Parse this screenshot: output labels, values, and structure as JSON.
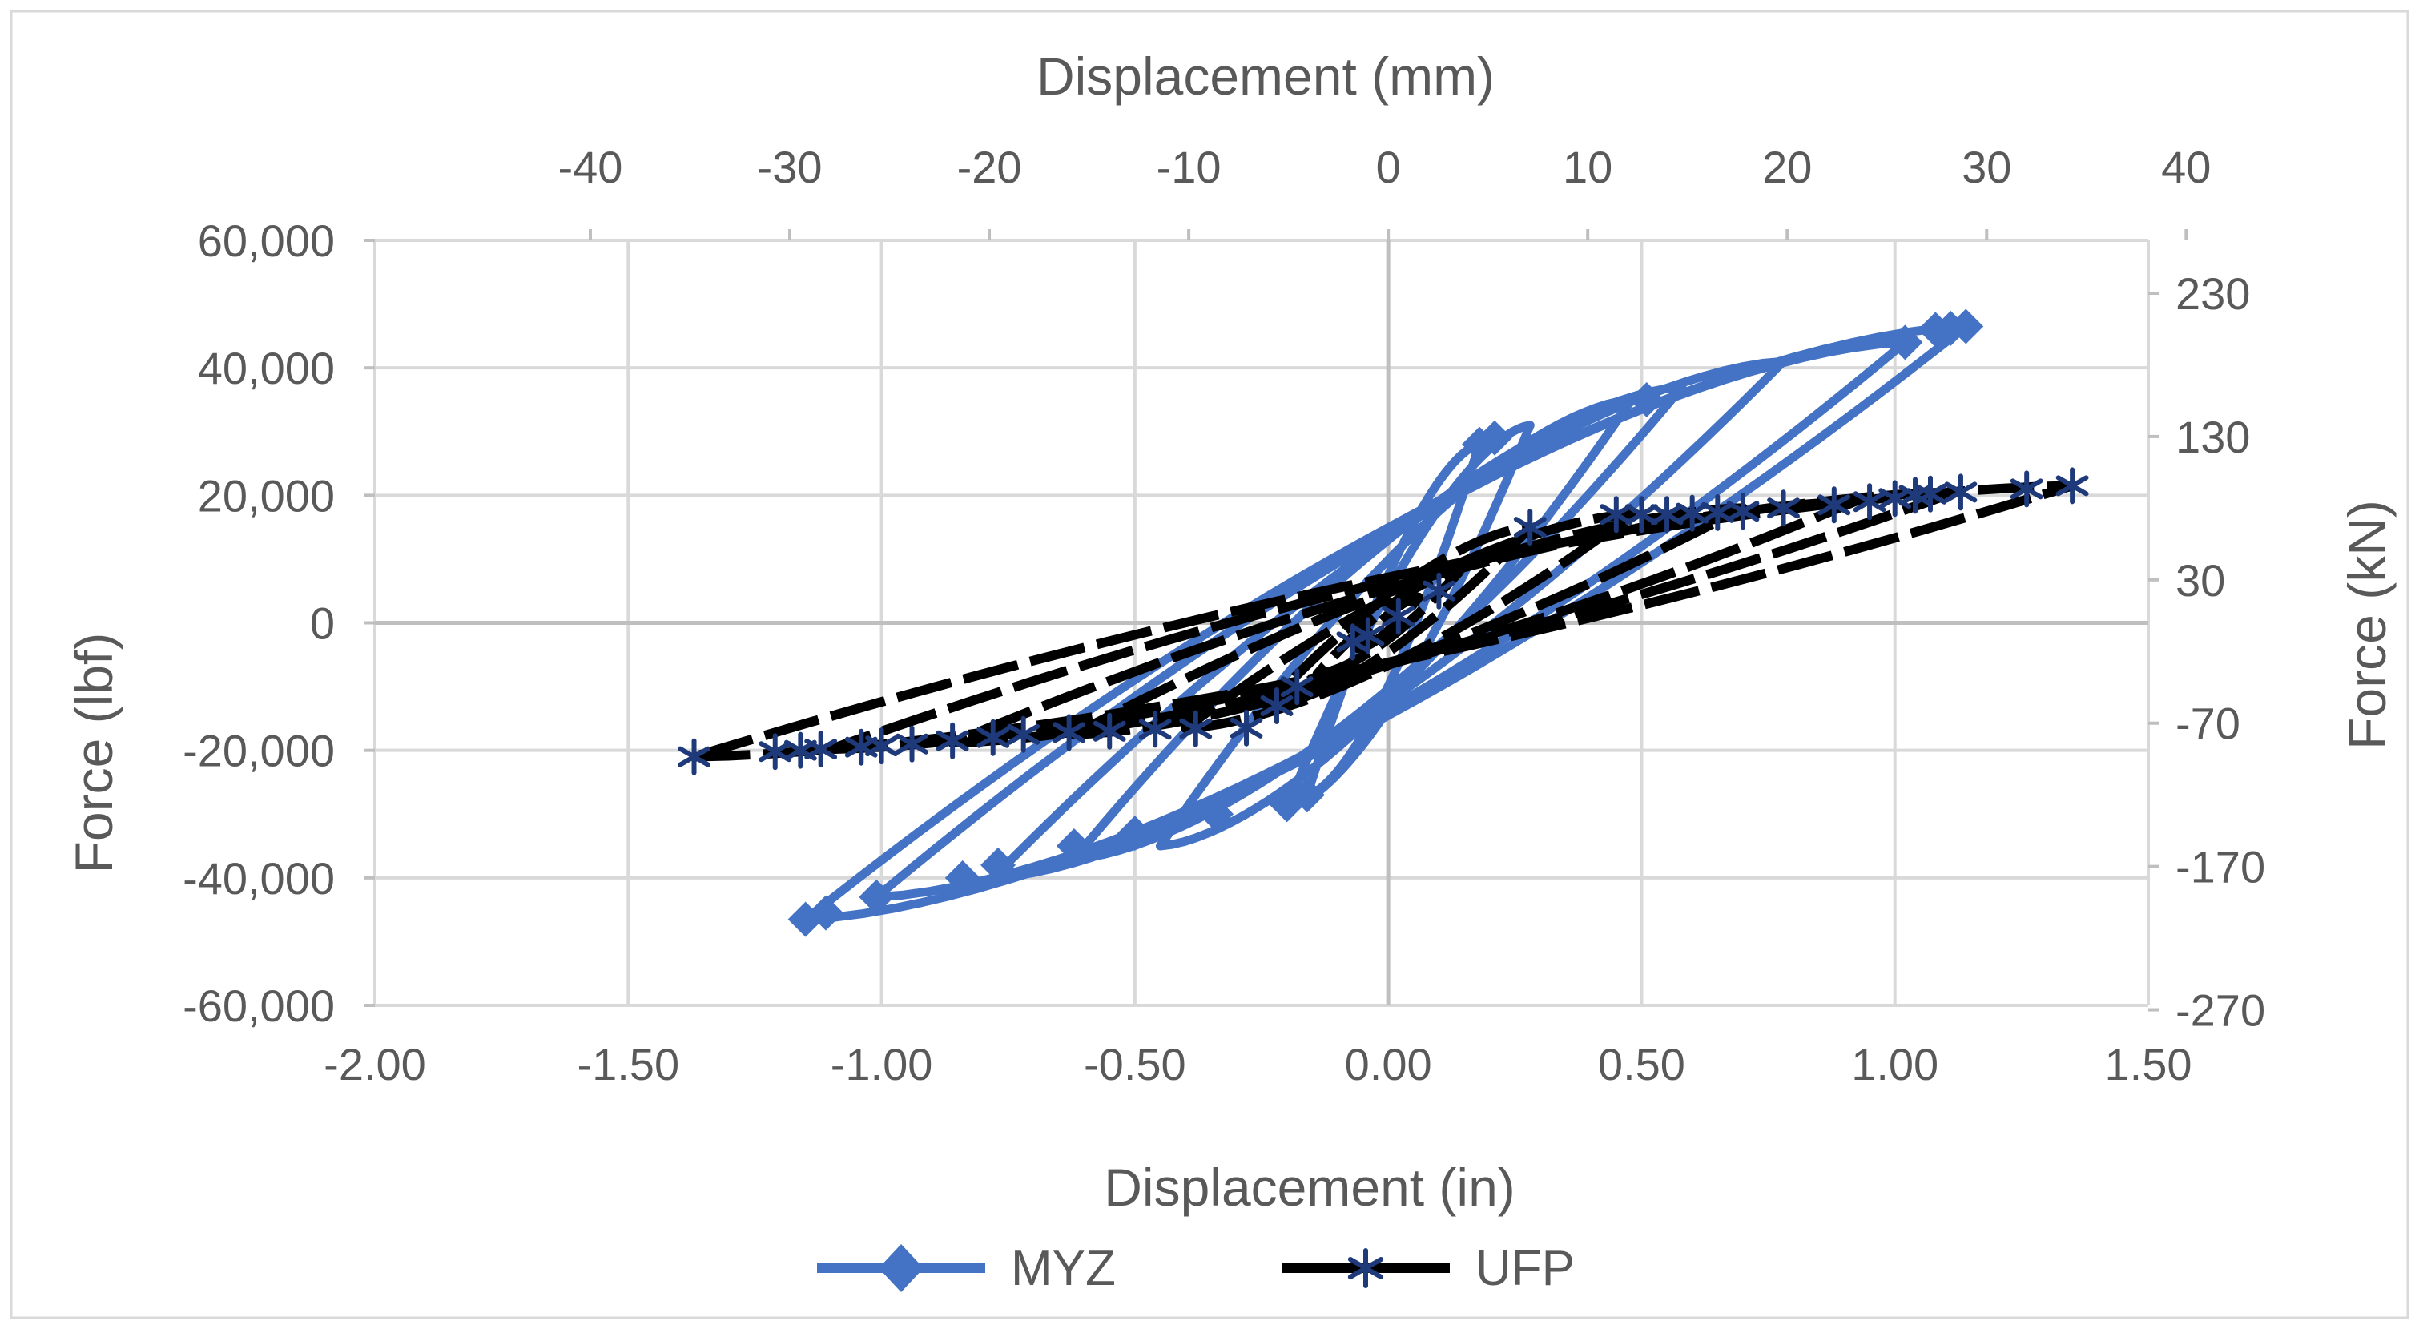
{
  "chart_data": {
    "type": "scatter",
    "title": "",
    "axes": {
      "bottom": {
        "label": "Displacement (in)",
        "range": [
          -2.0,
          1.5
        ],
        "ticks": [
          "-2.00",
          "-1.50",
          "-1.00",
          "-0.50",
          "0.00",
          "0.50",
          "1.00",
          "1.50"
        ],
        "tick_values": [
          -2.0,
          -1.5,
          -1.0,
          -0.5,
          0.0,
          0.5,
          1.0,
          1.5
        ]
      },
      "top": {
        "label": "Displacement (mm)",
        "ticks": [
          "-40",
          "-30",
          "-20",
          "-10",
          "0",
          "10",
          "20",
          "30",
          "40"
        ],
        "tick_values": [
          -40,
          -30,
          -20,
          -10,
          0,
          10,
          20,
          30,
          40
        ]
      },
      "left": {
        "label": "Force (lbf)",
        "range": [
          -60000,
          60000
        ],
        "ticks": [
          "60,000",
          "40,000",
          "20,000",
          "0",
          "-20,000",
          "-40,000",
          "-60,000"
        ],
        "tick_values": [
          60000,
          40000,
          20000,
          0,
          -20000,
          -40000,
          -60000
        ]
      },
      "right": {
        "label": "Force (kN)",
        "ticks": [
          "230",
          "130",
          "30",
          "-70",
          "-170",
          "-270"
        ],
        "tick_values": [
          230,
          130,
          30,
          -70,
          -170,
          -270
        ]
      }
    },
    "grid": true,
    "legend": {
      "placement": "bottom",
      "entries": [
        "MYZ",
        "UFP"
      ]
    },
    "colors": {
      "MYZ": "#4472C4",
      "UFP_line": "#000000",
      "UFP_marker": "#1F3A7A",
      "grid": "#D9D9D9",
      "text": "#595959"
    },
    "series": [
      {
        "name": "MYZ",
        "marker": "diamond",
        "loops": [
          {
            "amp_pos": 0.18,
            "amp_neg": -0.16,
            "f_pos": 28000,
            "f_neg": -27000
          },
          {
            "amp_pos": 0.28,
            "amp_neg": -0.2,
            "f_pos": 31000,
            "f_neg": -29000
          },
          {
            "amp_pos": 0.48,
            "amp_neg": -0.45,
            "f_pos": 35000,
            "f_neg": -35000
          },
          {
            "amp_pos": 0.58,
            "amp_neg": -0.62,
            "f_pos": 37000,
            "f_neg": -37000
          },
          {
            "amp_pos": 0.78,
            "amp_neg": -0.78,
            "f_pos": 41000,
            "f_neg": -40000
          },
          {
            "amp_pos": 1.02,
            "amp_neg": -1.01,
            "f_pos": 44000,
            "f_neg": -43000
          },
          {
            "amp_pos": 1.14,
            "amp_neg": -1.15,
            "f_pos": 46500,
            "f_neg": -46500
          }
        ],
        "markers": [
          [
            0.18,
            28000
          ],
          [
            0.21,
            29000
          ],
          [
            0.51,
            35000
          ],
          [
            1.02,
            44000
          ],
          [
            1.08,
            46000
          ],
          [
            1.11,
            46200
          ],
          [
            1.14,
            46500
          ],
          [
            -0.16,
            -27000
          ],
          [
            -0.2,
            -28500
          ],
          [
            -0.34,
            -30000
          ],
          [
            -0.5,
            -33000
          ],
          [
            -0.62,
            -35000
          ],
          [
            -0.77,
            -38000
          ],
          [
            -0.84,
            -40000
          ],
          [
            -1.01,
            -43000
          ],
          [
            -1.11,
            -45500
          ],
          [
            -1.15,
            -46500
          ]
        ]
      },
      {
        "name": "UFP",
        "marker": "asterisk",
        "loops": [
          {
            "amp_pos": 0.06,
            "amp_neg": -0.06,
            "f_pos": 4000,
            "f_neg": -4000
          },
          {
            "amp_pos": 0.14,
            "amp_neg": -0.14,
            "f_pos": 8000,
            "f_neg": -8000
          },
          {
            "amp_pos": 0.28,
            "amp_neg": -0.24,
            "f_pos": 15000,
            "f_neg": -13000
          },
          {
            "amp_pos": 0.48,
            "amp_neg": -0.4,
            "f_pos": 17000,
            "f_neg": -16500
          },
          {
            "amp_pos": 0.7,
            "amp_neg": -0.62,
            "f_pos": 18000,
            "f_neg": -17500
          },
          {
            "amp_pos": 0.92,
            "amp_neg": -0.86,
            "f_pos": 19000,
            "f_neg": -18800
          },
          {
            "amp_pos": 1.12,
            "amp_neg": -1.1,
            "f_pos": 20500,
            "f_neg": -19800
          },
          {
            "amp_pos": 1.35,
            "amp_neg": -1.37,
            "f_pos": 21500,
            "f_neg": -21000
          }
        ],
        "markers": [
          [
            -0.07,
            -3000
          ],
          [
            -0.04,
            -2000
          ],
          [
            0.02,
            1000
          ],
          [
            0.1,
            5000
          ],
          [
            -0.22,
            -13000
          ],
          [
            -0.18,
            -10000
          ],
          [
            0.28,
            15000
          ],
          [
            0.45,
            17000
          ],
          [
            0.5,
            17000
          ],
          [
            0.55,
            17000
          ],
          [
            0.6,
            17200
          ],
          [
            0.65,
            17300
          ],
          [
            0.7,
            17500
          ],
          [
            0.78,
            18000
          ],
          [
            0.88,
            18500
          ],
          [
            0.95,
            19000
          ],
          [
            1.0,
            19500
          ],
          [
            1.04,
            20000
          ],
          [
            1.07,
            20200
          ],
          [
            1.13,
            20500
          ],
          [
            1.26,
            21000
          ],
          [
            1.35,
            21500
          ],
          [
            -0.28,
            -16500
          ],
          [
            -0.38,
            -16600
          ],
          [
            -0.46,
            -16700
          ],
          [
            -0.55,
            -17000
          ],
          [
            -0.63,
            -17200
          ],
          [
            -0.72,
            -17500
          ],
          [
            -0.78,
            -18000
          ],
          [
            -0.86,
            -18500
          ],
          [
            -0.94,
            -19000
          ],
          [
            -1.0,
            -19300
          ],
          [
            -1.04,
            -19500
          ],
          [
            -1.12,
            -19800
          ],
          [
            -1.16,
            -20000
          ],
          [
            -1.21,
            -20200
          ],
          [
            -1.37,
            -21000
          ]
        ]
      }
    ]
  }
}
